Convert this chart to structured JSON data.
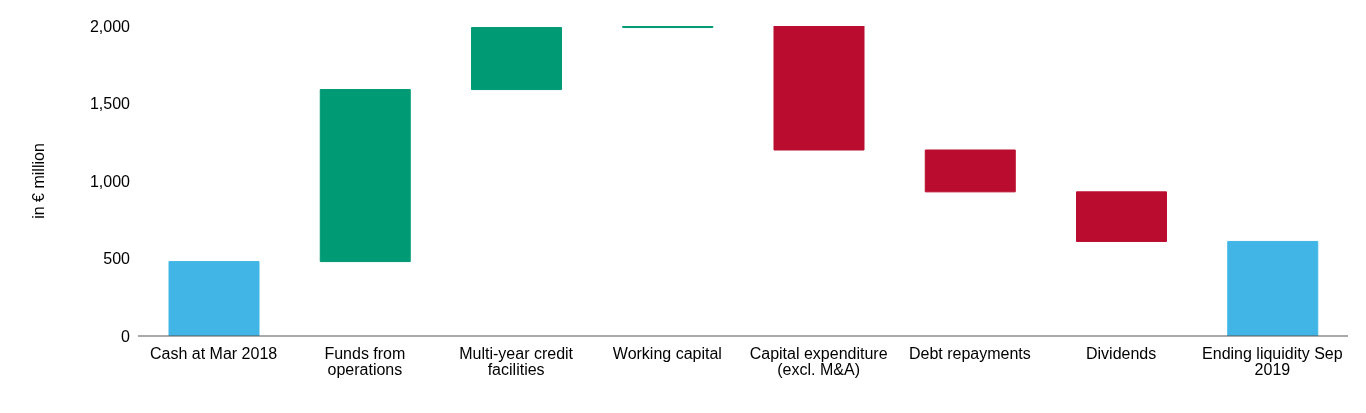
{
  "chart_data": {
    "type": "bar",
    "ylabel": "in € million",
    "categories": [
      "Cash at Mar 2018",
      "Funds from operations",
      "Multi-year credit facilities",
      "Working capital",
      "Capital expenditure (excl. M&A)",
      "Debt repayments",
      "Dividends",
      "Ending liquidity Sep 2019"
    ],
    "values": [
      480,
      1110,
      400,
      10,
      -800,
      -270,
      -320,
      610
    ],
    "base": [
      0,
      480,
      1590,
      1990,
      2000,
      1200,
      930,
      0
    ],
    "colors": [
      "#41b6e6",
      "#009a74",
      "#009a74",
      "#009a74",
      "#ba0c2f",
      "#ba0c2f",
      "#ba0c2f",
      "#41b6e6"
    ],
    "ylim": [
      0,
      2000
    ],
    "yticks": [
      0,
      500,
      {
        "value": 1000,
        "label": "1,000"
      },
      {
        "value": 1500,
        "label": "1,500"
      },
      {
        "value": 2000,
        "label": "2,000"
      }
    ],
    "grid": false,
    "legend": false
  }
}
